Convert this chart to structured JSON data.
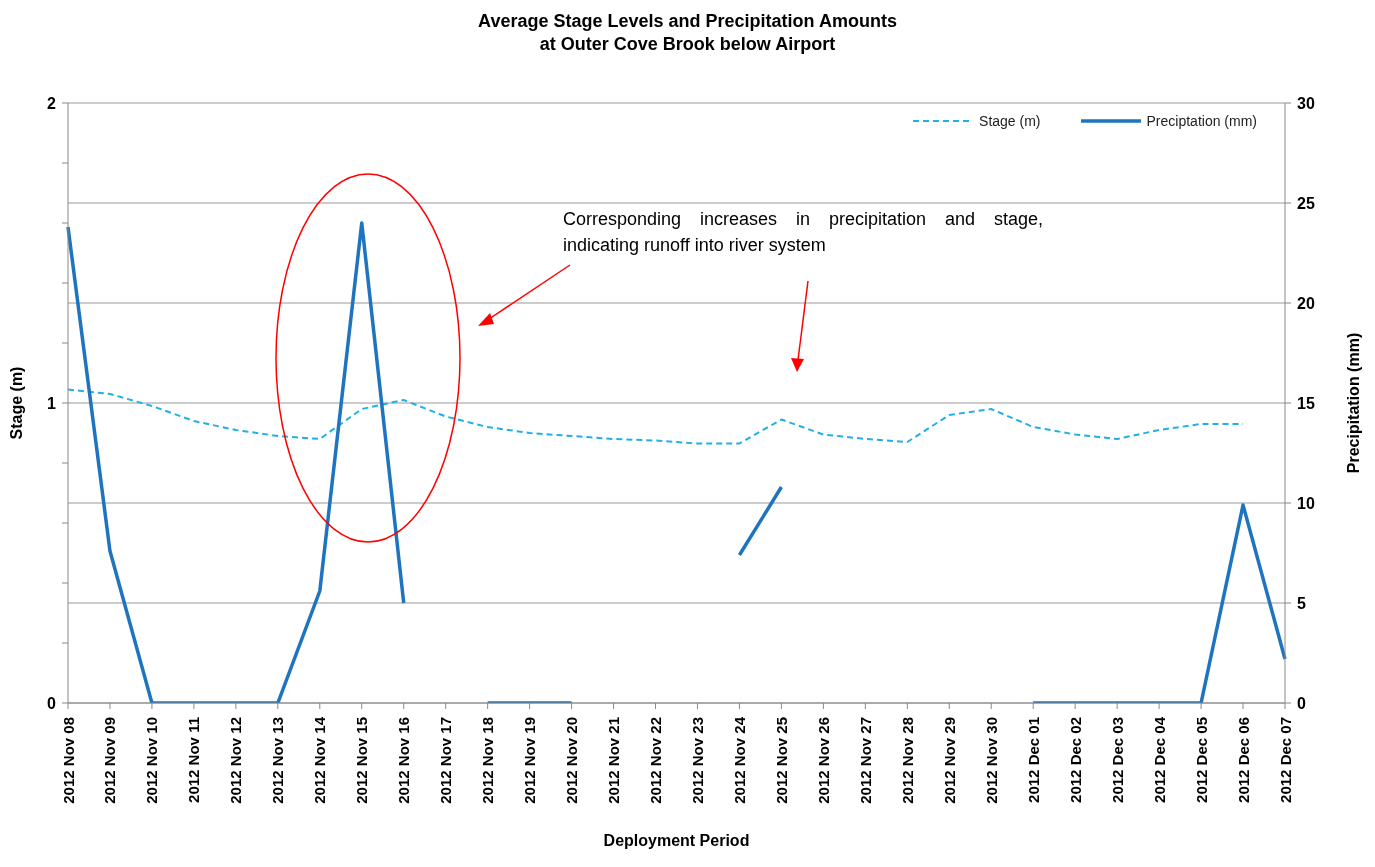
{
  "chart_data": {
    "type": "line",
    "title": "Average Stage Levels and Precipitation Amounts\nat Outer Cove Brook below Airport",
    "xlabel": "Deployment Period",
    "ylabel": "Stage (m)",
    "y2label": "Precipitation (mm)",
    "categories": [
      "2012 Nov 08",
      "2012 Nov 09",
      "2012 Nov 10",
      "2012 Nov 11",
      "2012 Nov 12",
      "2012 Nov 13",
      "2012 Nov 14",
      "2012 Nov 15",
      "2012 Nov 16",
      "2012 Nov 17",
      "2012 Nov 18",
      "2012 Nov 19",
      "2012 Nov 20",
      "2012 Nov 21",
      "2012 Nov 22",
      "2012 Nov 23",
      "2012 Nov 24",
      "2012 Nov 25",
      "2012 Nov 26",
      "2012 Nov 27",
      "2012 Nov 28",
      "2012 Nov 29",
      "2012 Nov 30",
      "2012 Dec 01",
      "2012 Dec 02",
      "2012 Dec 03",
      "2012 Dec 04",
      "2012 Dec 05",
      "2012 Dec 06",
      "2012 Dec 07"
    ],
    "series": [
      {
        "name": "Stage (m)",
        "color": "#1fb0e6",
        "line_style": "dashed",
        "values": [
          1.045,
          1.03,
          0.99,
          0.94,
          0.91,
          0.89,
          0.88,
          0.98,
          1.01,
          0.955,
          0.92,
          0.9,
          0.89,
          0.88,
          0.875,
          0.865,
          0.865,
          0.945,
          0.895,
          0.88,
          0.87,
          0.96,
          0.98,
          0.92,
          0.895,
          0.88,
          0.91,
          0.93,
          0.93,
          null
        ]
      },
      {
        "name": "Preciptation (mm)",
        "color": "#1f74c0",
        "line_style": "solid",
        "axis": "y2",
        "values": [
          23.8,
          7.6,
          0,
          0,
          0,
          0,
          5.6,
          24,
          5,
          null,
          0,
          0,
          0,
          null,
          null,
          null,
          7.4,
          10.8,
          null,
          null,
          null,
          null,
          null,
          0,
          0,
          0,
          0,
          0,
          9.9,
          2.2
        ]
      }
    ],
    "ylim": [
      0,
      2
    ],
    "yticks": [
      0,
      {
        "value": 0.2,
        "label": null
      },
      {
        "value": 0.4,
        "label": null
      },
      {
        "value": 0.6,
        "label": null
      },
      {
        "value": 0.8,
        "label": null
      },
      1,
      {
        "value": 1.2,
        "label": null
      },
      {
        "value": 1.4,
        "label": null
      },
      {
        "value": 1.6,
        "label": null
      },
      {
        "value": 1.8,
        "label": null
      },
      2
    ],
    "y2lim": [
      0,
      30
    ],
    "y2ticks": [
      0,
      5,
      10,
      15,
      20,
      25,
      30
    ],
    "grid": "y2",
    "legend": "top right",
    "marker": "none",
    "annotations": [
      "Corresponding increases in precipitation and stage, indicating runoff into river system"
    ]
  }
}
